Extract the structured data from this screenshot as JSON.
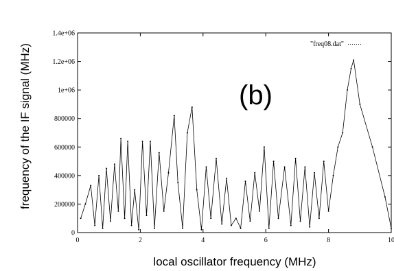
{
  "chart_data": {
    "type": "scatter",
    "title": "",
    "panel_label": "(b)",
    "xlabel": "local oscillator frequency  (MHz)",
    "ylabel": "frequency of the IF signal  (MHz)",
    "xlim": [
      0,
      10
    ],
    "ylim": [
      0,
      1400000
    ],
    "x_ticks": [
      0,
      2,
      4,
      6,
      8,
      10
    ],
    "y_ticks": [
      {
        "value": 0,
        "label": "0"
      },
      {
        "value": 200000,
        "label": "200000"
      },
      {
        "value": 400000,
        "label": "400000"
      },
      {
        "value": 600000,
        "label": "600000"
      },
      {
        "value": 800000,
        "label": "800000"
      },
      {
        "value": 1000000,
        "label": "1e+06"
      },
      {
        "value": 1200000,
        "label": "1.2e+06"
      },
      {
        "value": 1400000,
        "label": "1.4e+06"
      }
    ],
    "grid": false,
    "legend": "top-right",
    "series": [
      {
        "name": "\"freq08.dat\"",
        "color": "#000000",
        "marker": "dot",
        "x": [
          0.1,
          0.25,
          0.42,
          0.55,
          0.68,
          0.8,
          0.92,
          1.05,
          1.18,
          1.3,
          1.38,
          1.5,
          1.6,
          1.72,
          1.82,
          1.95,
          2.07,
          2.2,
          2.32,
          2.45,
          2.6,
          2.75,
          2.9,
          3.08,
          3.2,
          3.35,
          3.5,
          3.65,
          3.8,
          3.95,
          4.1,
          4.25,
          4.42,
          4.6,
          4.75,
          4.9,
          5.05,
          5.2,
          5.35,
          5.5,
          5.65,
          5.8,
          5.95,
          6.1,
          6.25,
          6.4,
          6.6,
          6.8,
          6.95,
          7.1,
          7.25,
          7.4,
          7.55,
          7.7,
          7.85,
          8.0,
          8.15,
          8.3,
          8.45,
          8.6,
          8.72,
          8.8,
          9.0,
          9.4,
          9.8,
          10.0
        ],
        "y": [
          100000,
          200000,
          330000,
          50000,
          400000,
          30000,
          450000,
          80000,
          480000,
          150000,
          660000,
          100000,
          640000,
          50000,
          300000,
          20000,
          640000,
          120000,
          640000,
          30000,
          560000,
          150000,
          420000,
          820000,
          350000,
          30000,
          700000,
          880000,
          300000,
          20000,
          460000,
          100000,
          520000,
          60000,
          380000,
          50000,
          100000,
          30000,
          360000,
          80000,
          420000,
          150000,
          600000,
          30000,
          500000,
          100000,
          460000,
          50000,
          520000,
          80000,
          460000,
          40000,
          420000,
          100000,
          500000,
          150000,
          400000,
          600000,
          700000,
          1000000,
          1150000,
          1210000,
          900000,
          600000,
          250000,
          30000
        ]
      }
    ]
  }
}
